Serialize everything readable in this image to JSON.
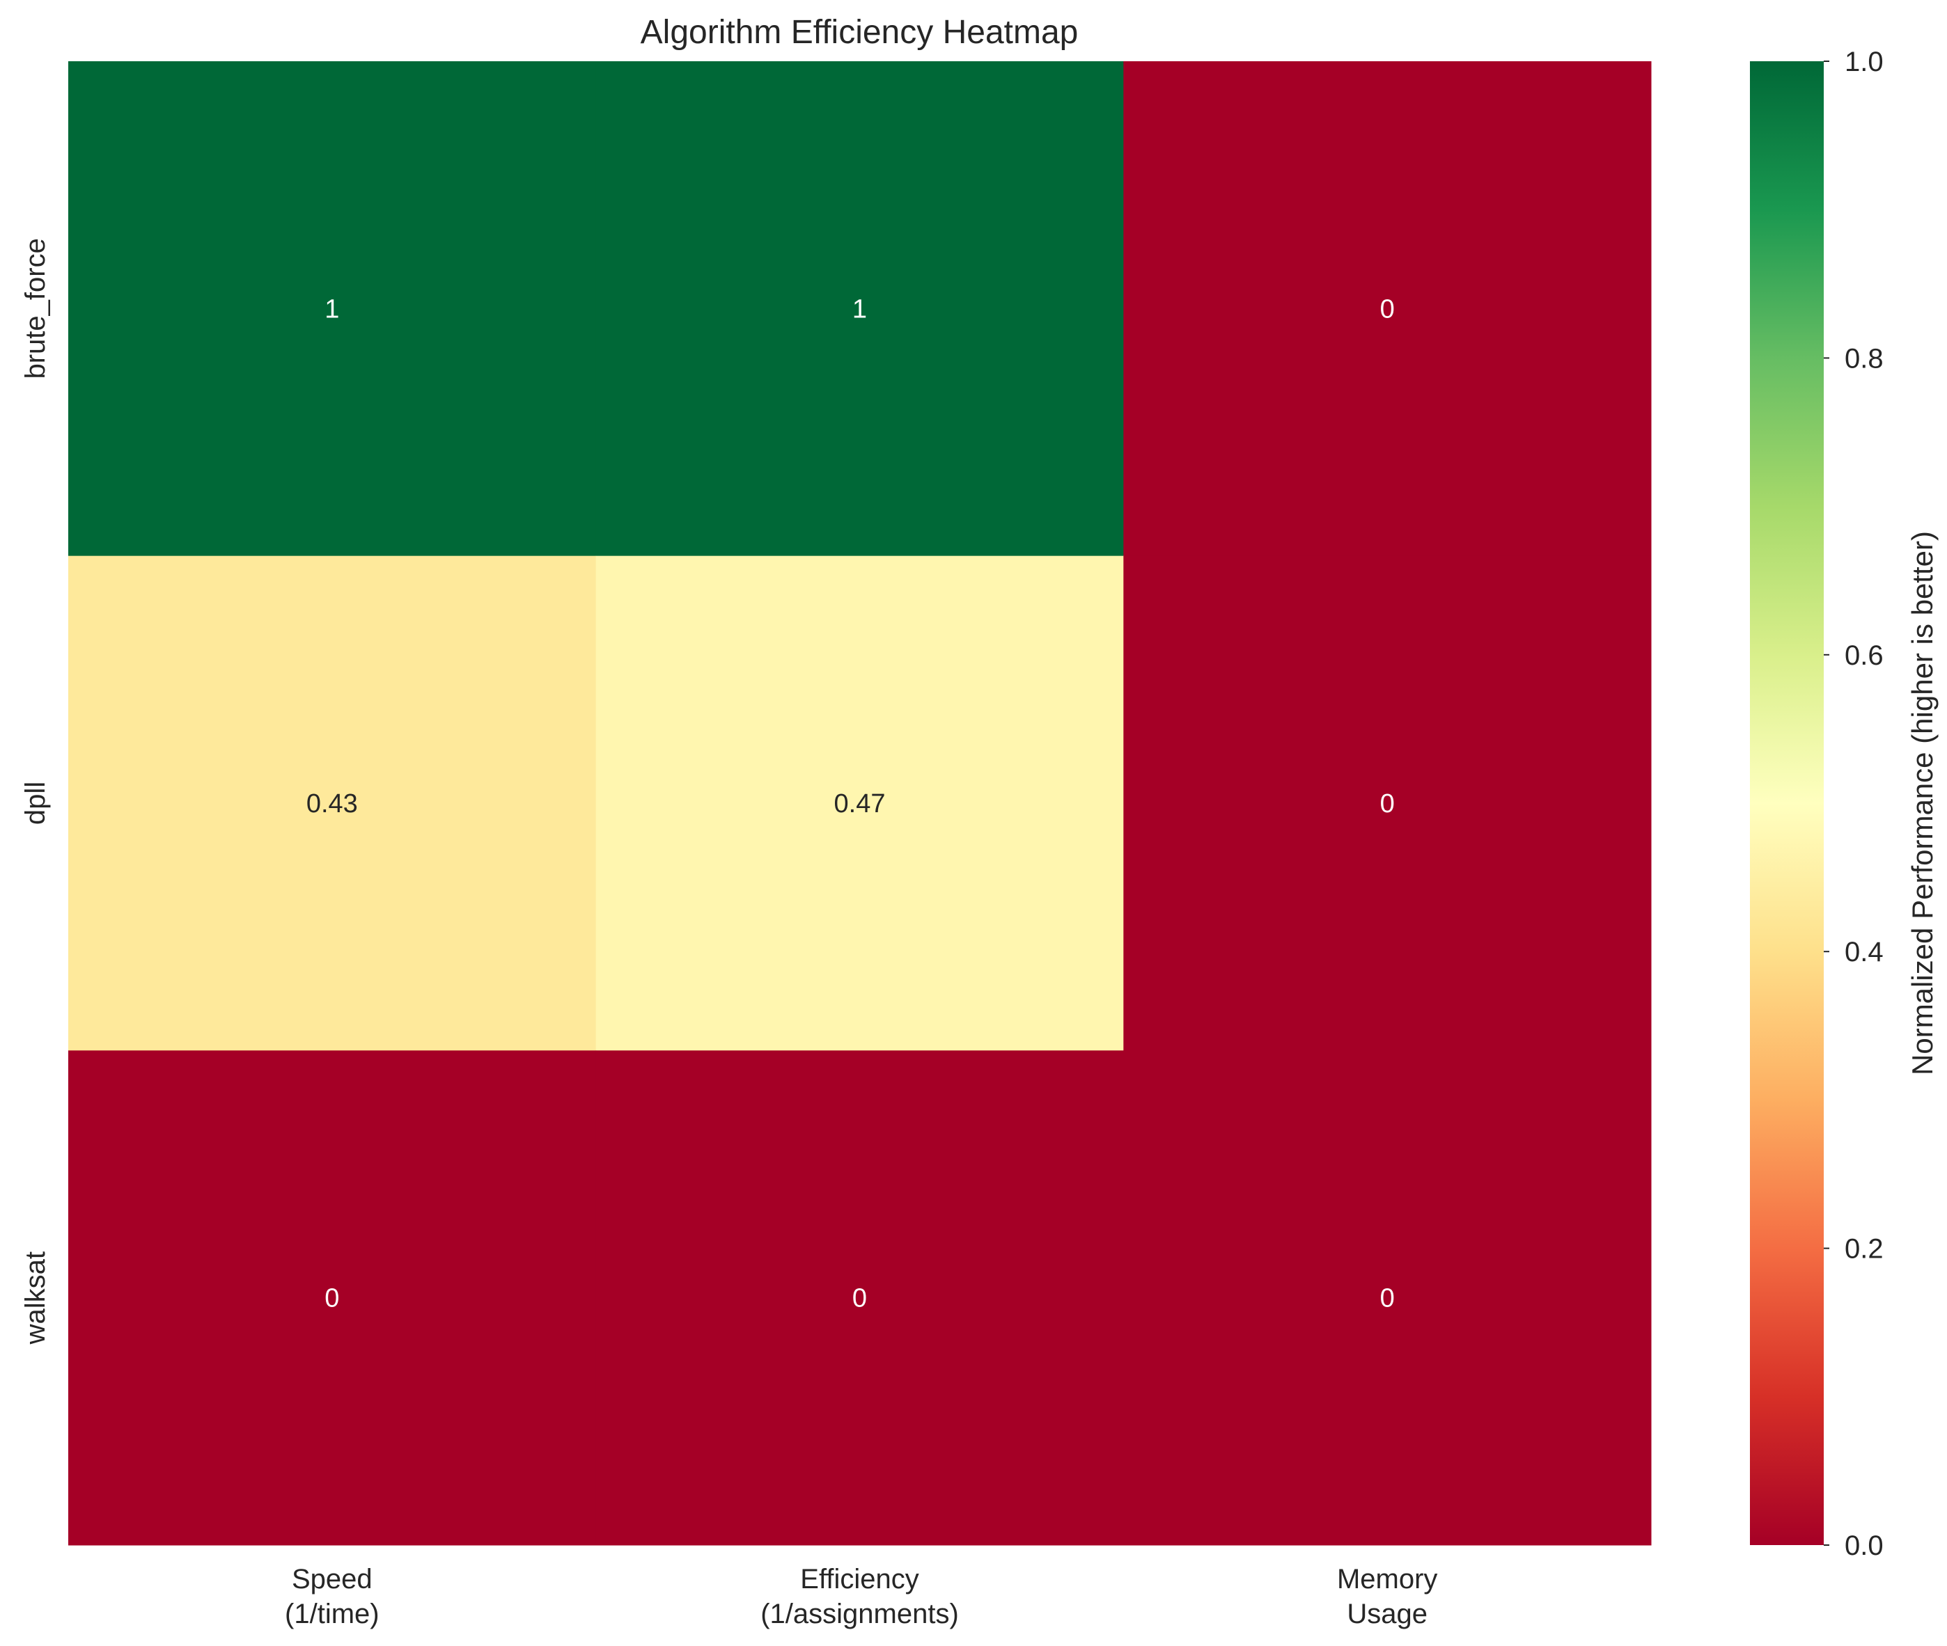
{
  "chart_data": {
    "type": "heatmap",
    "title": "Algorithm Efficiency Heatmap",
    "rows": [
      "brute_force",
      "dpll",
      "walksat"
    ],
    "columns": [
      [
        "Speed",
        "(1/time)"
      ],
      [
        "Efficiency",
        "(1/assignments)"
      ],
      [
        "Memory",
        "Usage"
      ]
    ],
    "values": [
      [
        1,
        1,
        0
      ],
      [
        0.43,
        0.47,
        0
      ],
      [
        0,
        0,
        0
      ]
    ],
    "annotations": [
      [
        "1",
        "1",
        "0"
      ],
      [
        "0.43",
        "0.47",
        "0"
      ],
      [
        "0",
        "0",
        "0"
      ]
    ],
    "colormap": "RdYlGn",
    "vmin": 0,
    "vmax": 1,
    "colorbar": {
      "label": "Normalized Performance (higher is better)",
      "ticks": [
        "0.0",
        "0.2",
        "0.4",
        "0.6",
        "0.8",
        "1.0"
      ],
      "tick_values": [
        0,
        0.2,
        0.4,
        0.6,
        0.8,
        1.0
      ]
    }
  }
}
